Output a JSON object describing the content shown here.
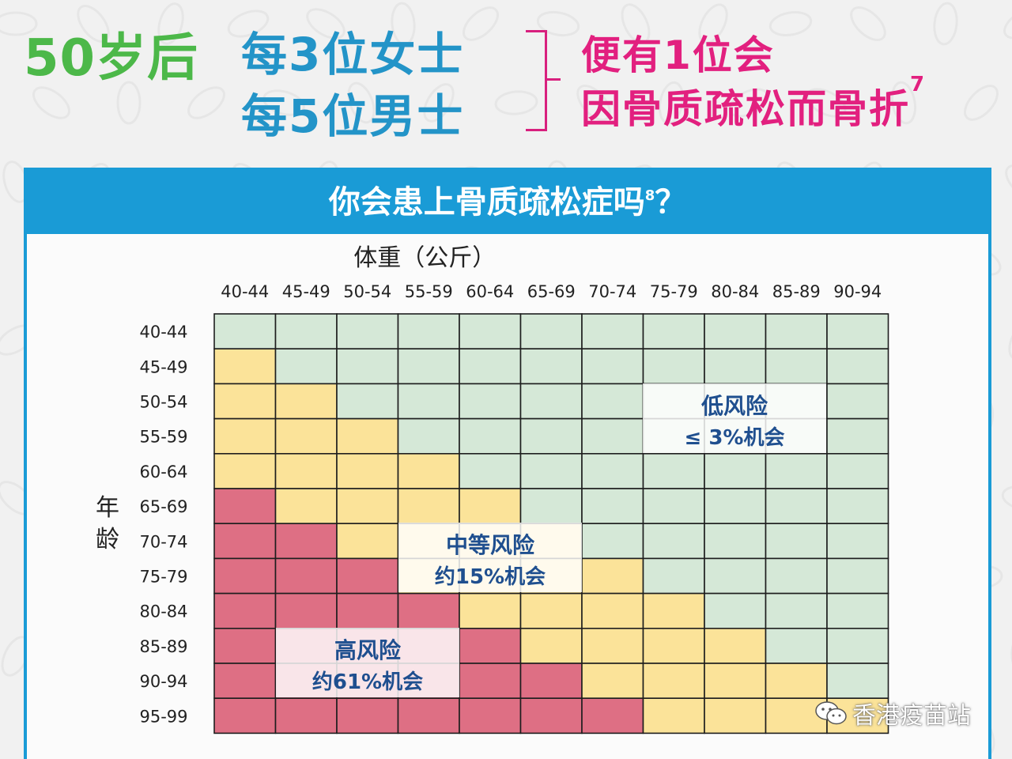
{
  "headline": {
    "prefix": "50岁后",
    "line1": "每3位女士",
    "line2": "每5位男士",
    "result1": "便有1位会",
    "result2": "因骨质疏松而骨折",
    "result2_ref": "7"
  },
  "panel": {
    "title": "你会患上骨质疏松症吗",
    "title_ref": "8",
    "title_suffix": "？"
  },
  "watermark": {
    "text": "香港疫苗站",
    "icon": "wechat-icon"
  },
  "colors": {
    "low": "#d5e8d7",
    "medium": "#fbe399",
    "high": "#de6f84",
    "accent_blue": "#1a9bd6",
    "green": "#4cb849",
    "pink": "#e2207f"
  },
  "chart_data": {
    "type": "heatmap",
    "title": "你会患上骨质疏松症吗",
    "xlabel": "体重（公斤）",
    "ylabel": "年龄",
    "x_categories": [
      "40-44",
      "45-49",
      "50-54",
      "55-59",
      "60-64",
      "65-69",
      "70-74",
      "75-79",
      "80-84",
      "85-89",
      "90-94"
    ],
    "y_categories": [
      "40-44",
      "45-49",
      "50-54",
      "55-59",
      "60-64",
      "65-69",
      "70-74",
      "75-79",
      "80-84",
      "85-89",
      "90-94",
      "95-99"
    ],
    "levels": [
      "low",
      "medium",
      "high"
    ],
    "grid": [
      [
        "low",
        "low",
        "low",
        "low",
        "low",
        "low",
        "low",
        "low",
        "low",
        "low",
        "low"
      ],
      [
        "medium",
        "low",
        "low",
        "low",
        "low",
        "low",
        "low",
        "low",
        "low",
        "low",
        "low"
      ],
      [
        "medium",
        "medium",
        "low",
        "low",
        "low",
        "low",
        "low",
        "low",
        "low",
        "low",
        "low"
      ],
      [
        "medium",
        "medium",
        "medium",
        "low",
        "low",
        "low",
        "low",
        "low",
        "low",
        "low",
        "low"
      ],
      [
        "medium",
        "medium",
        "medium",
        "medium",
        "low",
        "low",
        "low",
        "low",
        "low",
        "low",
        "low"
      ],
      [
        "high",
        "medium",
        "medium",
        "medium",
        "medium",
        "low",
        "low",
        "low",
        "low",
        "low",
        "low"
      ],
      [
        "high",
        "high",
        "medium",
        "medium",
        "medium",
        "medium",
        "low",
        "low",
        "low",
        "low",
        "low"
      ],
      [
        "high",
        "high",
        "high",
        "medium",
        "medium",
        "medium",
        "medium",
        "low",
        "low",
        "low",
        "low"
      ],
      [
        "high",
        "high",
        "high",
        "high",
        "medium",
        "medium",
        "medium",
        "medium",
        "low",
        "low",
        "low"
      ],
      [
        "high",
        "high",
        "high",
        "high",
        "high",
        "medium",
        "medium",
        "medium",
        "medium",
        "low",
        "low"
      ],
      [
        "high",
        "high",
        "high",
        "high",
        "high",
        "high",
        "medium",
        "medium",
        "medium",
        "medium",
        "low"
      ],
      [
        "high",
        "high",
        "high",
        "high",
        "high",
        "high",
        "high",
        "medium",
        "medium",
        "medium",
        "medium"
      ]
    ],
    "annotations": [
      {
        "level": "low",
        "line1": "低风险",
        "line2": "≤ 3%机会"
      },
      {
        "level": "medium",
        "line1": "中等风险",
        "line2": "约15%机会"
      },
      {
        "level": "high",
        "line1": "高风险",
        "line2": "约61%机会"
      }
    ]
  }
}
